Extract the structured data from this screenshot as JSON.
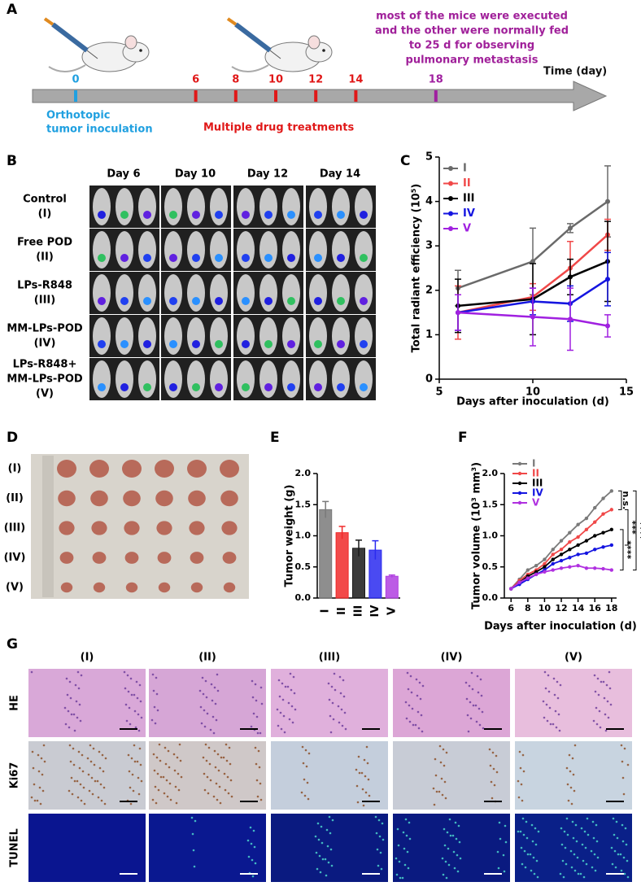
{
  "panels": {
    "a": "A",
    "b": "B",
    "c": "C",
    "d": "D",
    "e": "E",
    "f": "F",
    "g": "G"
  },
  "timeline": {
    "label": "Time (day)",
    "days": [
      0,
      6,
      8,
      10,
      12,
      14,
      18
    ],
    "start_note": [
      "Orthotopic",
      "tumor inoculation"
    ],
    "treatment_note": "Multiple drug treatments",
    "end_note": [
      "most of the mice were executed",
      "and the other were normally fed",
      " to 25 d  for observing",
      "pulmonary metastasis"
    ]
  },
  "imaging": {
    "columns": [
      "Day 6",
      "Day 10",
      "Day 12",
      "Day 14"
    ],
    "rows": [
      [
        "Control",
        "(I)"
      ],
      [
        "Free POD",
        "(II)"
      ],
      [
        "LPs-R848",
        "(III)"
      ],
      [
        "MM-LPs-POD",
        "(IV)"
      ],
      [
        "LPs-R848+",
        "MM-LPs-POD",
        "(V)"
      ]
    ]
  },
  "tumors": {
    "rows": [
      "(I)",
      "(II)",
      "(III)",
      "(IV)",
      "(V)"
    ]
  },
  "histology": {
    "columns": [
      "(I)",
      "(II)",
      "(III)",
      "(IV)",
      "(V)"
    ],
    "rows": [
      "HE",
      "Ki67",
      "TUNEL"
    ]
  },
  "chart_data": [
    {
      "type": "line",
      "xlabel": "Days after inoculation (d)",
      "ylabel": "Total radiant efficiency (10⁵)",
      "x": [
        6,
        10,
        12,
        14
      ],
      "xlim": [
        5,
        15
      ],
      "xticks": [
        5,
        10,
        15
      ],
      "ylim": [
        0,
        5
      ],
      "yticks": [
        0,
        1,
        2,
        3,
        4,
        5
      ],
      "series": [
        {
          "name": "I",
          "color": "#6a6a6a",
          "values": [
            2.05,
            2.65,
            3.4,
            4.0
          ],
          "errors": [
            0.4,
            0.75,
            0.1,
            0.8
          ]
        },
        {
          "name": "II",
          "color": "#f04848",
          "values": [
            1.5,
            1.85,
            2.5,
            3.25
          ],
          "errors": [
            0.6,
            0.3,
            0.6,
            0.35
          ]
        },
        {
          "name": "III",
          "color": "#000000",
          "values": [
            1.65,
            1.8,
            2.3,
            2.65
          ],
          "errors": [
            0.6,
            0.8,
            0.4,
            0.9
          ]
        },
        {
          "name": "IV",
          "color": "#1515e0",
          "values": [
            1.5,
            1.75,
            1.7,
            2.25
          ],
          "errors": [
            0.4,
            0.3,
            0.4,
            0.6
          ]
        },
        {
          "name": "V",
          "color": "#a020e0",
          "values": [
            1.5,
            1.4,
            1.35,
            1.2
          ],
          "errors": [
            0.4,
            0.65,
            0.7,
            0.25
          ]
        }
      ]
    },
    {
      "type": "bar",
      "ylabel": "Tumor weight (g)",
      "categories": [
        "I",
        "II",
        "III",
        "IV",
        "V"
      ],
      "values": [
        1.42,
        1.05,
        0.8,
        0.77,
        0.35
      ],
      "errors": [
        0.13,
        0.1,
        0.13,
        0.15,
        0.02
      ],
      "colors": [
        "#7a7a7a",
        "#f02a2a",
        "#1a1a1a",
        "#2a2af0",
        "#b040e0"
      ],
      "ylim": [
        0,
        2
      ],
      "yticks": [
        {
          "value": 0,
          "label": "0.0"
        },
        {
          "value": 0.5,
          "label": "0.5"
        },
        {
          "value": 1,
          "label": "1.0"
        },
        {
          "value": 1.5,
          "label": "1.5"
        },
        {
          "value": 2,
          "label": "2.0"
        }
      ]
    },
    {
      "type": "line",
      "xlabel": "Days after inoculation (d)",
      "ylabel": "Tumor volume (10³ mm³)",
      "x": [
        6,
        7,
        8,
        9,
        10,
        11,
        12,
        13,
        14,
        15,
        16,
        17,
        18
      ],
      "xlim": [
        5.2,
        18.6
      ],
      "xticks": [
        6,
        8,
        10,
        12,
        14,
        16,
        18
      ],
      "ylim": [
        0,
        2
      ],
      "yticks": [
        {
          "value": 0,
          "label": "0.0"
        },
        {
          "value": 0.5,
          "label": "0.5"
        },
        {
          "value": 1,
          "label": "1.0"
        },
        {
          "value": 1.5,
          "label": "1.5"
        },
        {
          "value": 2,
          "label": "2.0"
        }
      ],
      "annotations": [
        "n.s.",
        "***",
        "****",
        "****"
      ],
      "series": [
        {
          "name": "I",
          "color": "#7a7a7a",
          "values": [
            0.15,
            0.3,
            0.45,
            0.52,
            0.62,
            0.78,
            0.92,
            1.05,
            1.18,
            1.28,
            1.45,
            1.6,
            1.72
          ]
        },
        {
          "name": "II",
          "color": "#f04848",
          "values": [
            0.15,
            0.28,
            0.38,
            0.45,
            0.55,
            0.7,
            0.78,
            0.9,
            0.98,
            1.1,
            1.22,
            1.35,
            1.42
          ]
        },
        {
          "name": "III",
          "color": "#000000",
          "values": [
            0.15,
            0.25,
            0.35,
            0.42,
            0.5,
            0.62,
            0.7,
            0.78,
            0.85,
            0.92,
            1.0,
            1.05,
            1.1
          ]
        },
        {
          "name": "IV",
          "color": "#1515e0",
          "values": [
            0.15,
            0.22,
            0.3,
            0.38,
            0.45,
            0.55,
            0.6,
            0.65,
            0.7,
            0.72,
            0.78,
            0.82,
            0.85
          ]
        },
        {
          "name": "V",
          "color": "#b030e0",
          "values": [
            0.15,
            0.25,
            0.32,
            0.38,
            0.42,
            0.45,
            0.48,
            0.5,
            0.52,
            0.48,
            0.48,
            0.47,
            0.45
          ]
        }
      ]
    }
  ]
}
